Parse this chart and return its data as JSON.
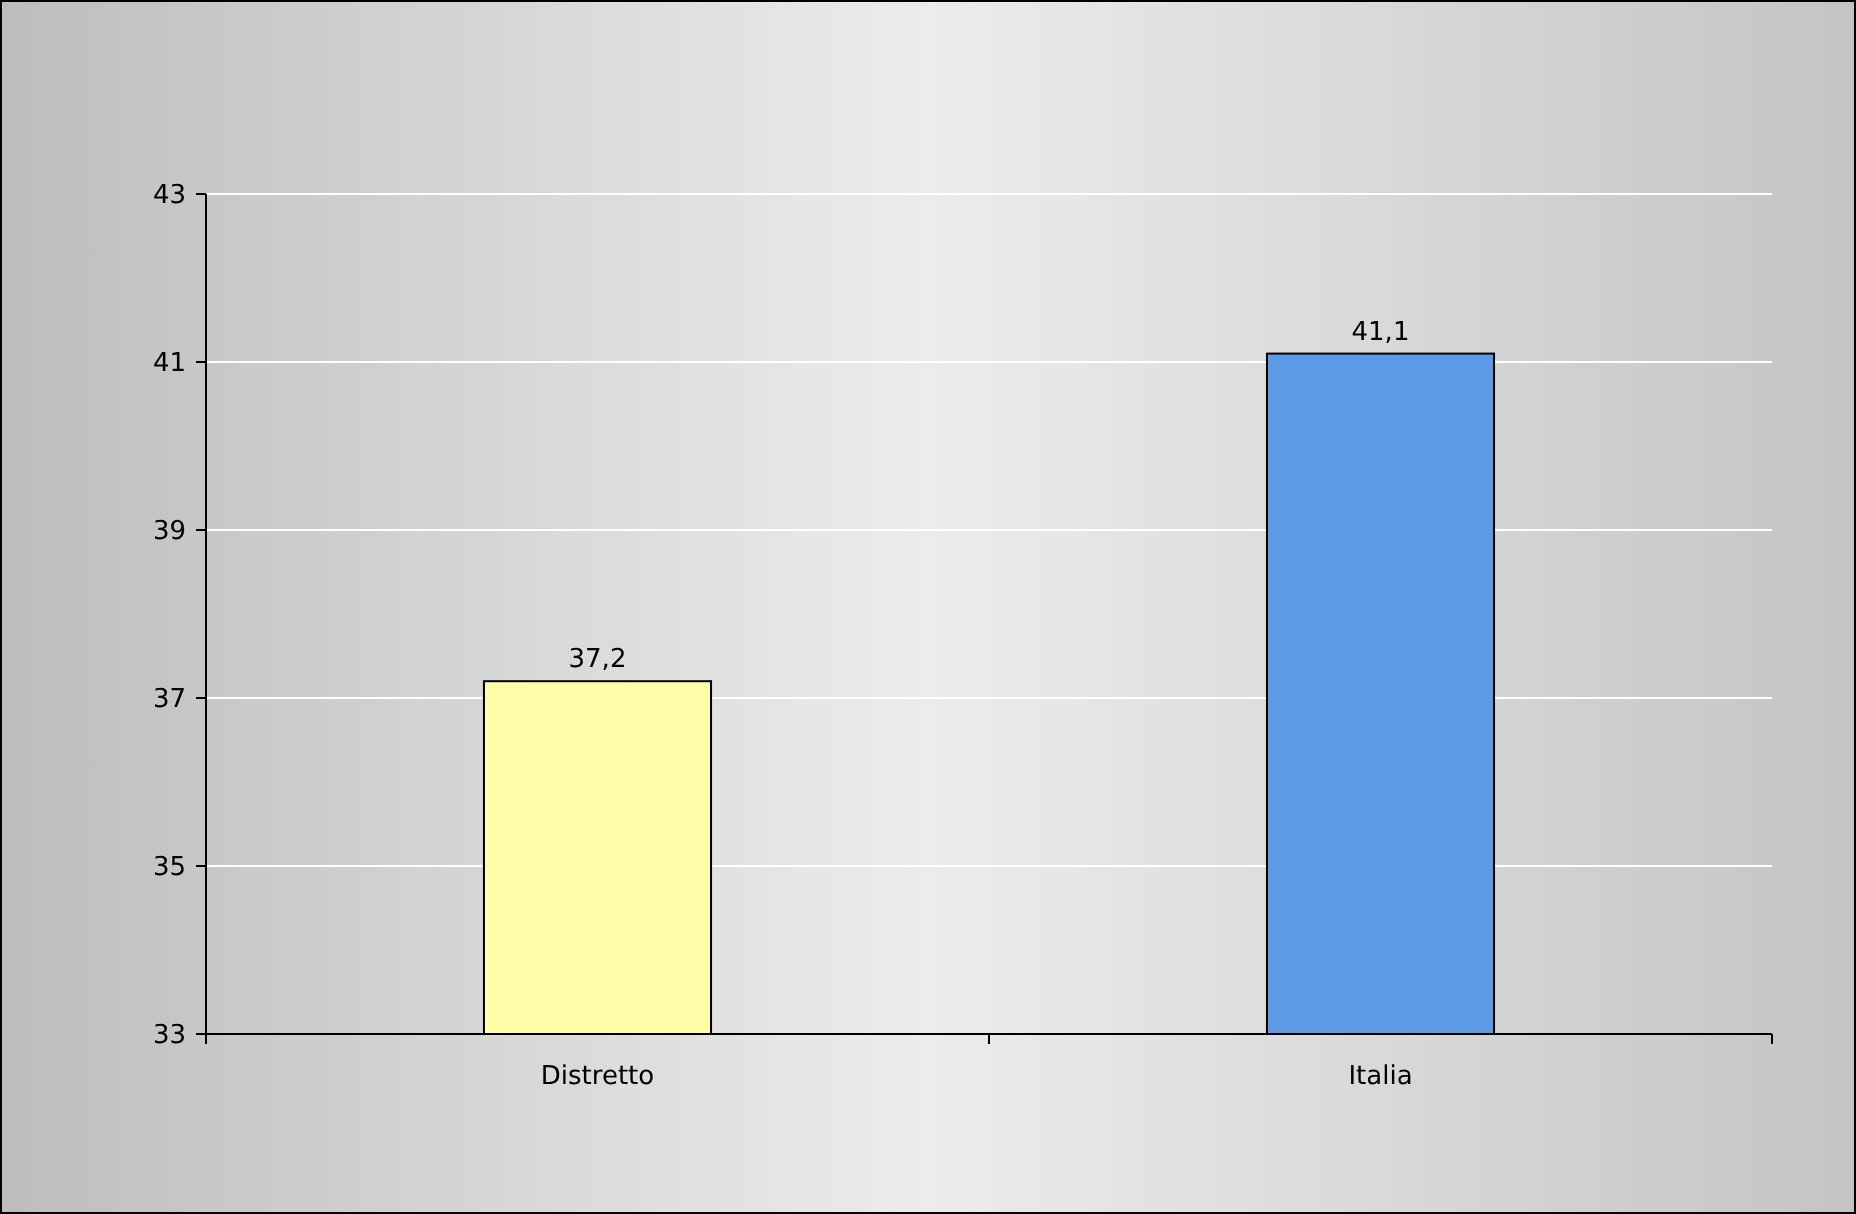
{
  "chart_data": {
    "type": "bar",
    "categories": [
      "Distretto",
      "Italia"
    ],
    "values": [
      37.2,
      41.1
    ],
    "value_labels": [
      "37,2",
      "41,1"
    ],
    "colors": [
      "#ffffaa",
      "#5c9ae6"
    ],
    "ylim": [
      33,
      43
    ],
    "yticks": [
      33,
      35,
      37,
      39,
      41,
      43
    ],
    "grid": "y"
  }
}
